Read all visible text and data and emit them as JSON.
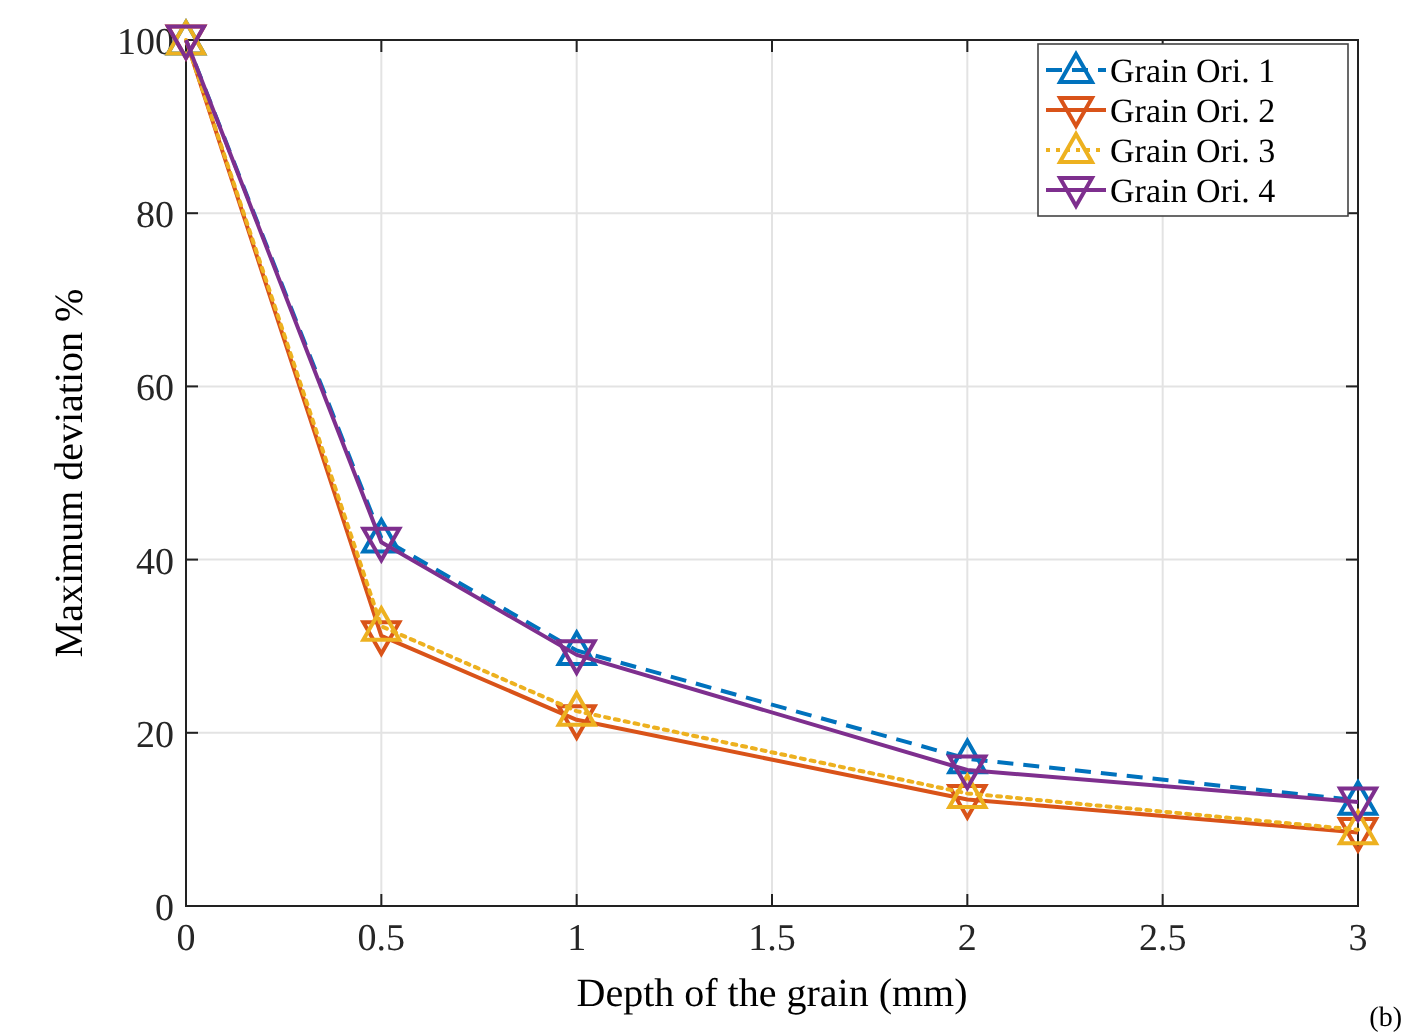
{
  "chart_data": {
    "type": "line",
    "xlabel": "Depth of the grain (mm)",
    "ylabel": "Maximum deviation %",
    "x": [
      0,
      0.5,
      1,
      2,
      3
    ],
    "xlim": [
      0,
      3
    ],
    "xticks": [
      0,
      0.5,
      1,
      1.5,
      2,
      2.5,
      3
    ],
    "ylim": [
      0,
      100
    ],
    "yticks": [
      0,
      20,
      40,
      60,
      80,
      100
    ],
    "grid": true,
    "legend": "top right",
    "annotations": [
      "(b)"
    ],
    "series": [
      {
        "name": "Grain Ori. 1",
        "color": "#0072bd",
        "values": [
          100,
          42.5,
          29.5,
          17,
          12.2
        ],
        "marker": "triangle",
        "line_style": "dashed"
      },
      {
        "name": "Grain Ori. 2",
        "color": "#d95319",
        "values": [
          100,
          31.2,
          21.5,
          12.3,
          8.5
        ],
        "marker": "triangle-down",
        "line_style": "solid"
      },
      {
        "name": "Grain Ori. 3",
        "color": "#edb120",
        "values": [
          100,
          32.3,
          22.5,
          13,
          8.8
        ],
        "marker": "triangle",
        "line_style": "dotted"
      },
      {
        "name": "Grain Ori. 4",
        "color": "#7e2f8e",
        "values": [
          100,
          42,
          29,
          15.7,
          12
        ],
        "marker": "triangle-down",
        "line_style": "solid"
      }
    ]
  }
}
